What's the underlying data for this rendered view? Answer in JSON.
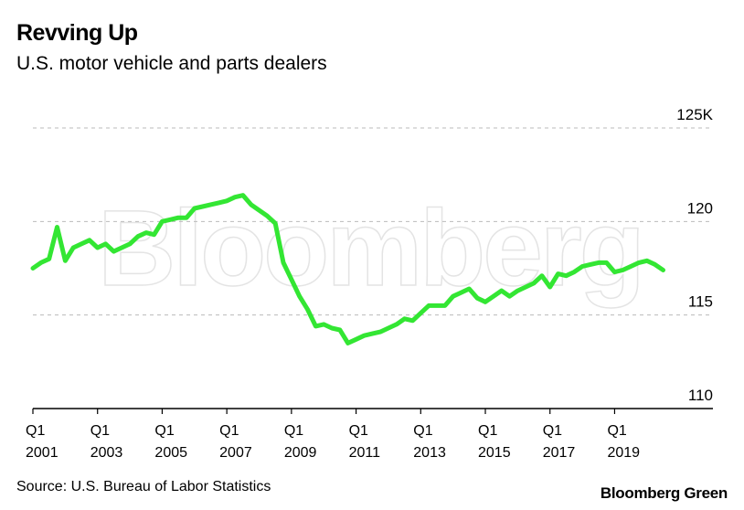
{
  "header": {
    "title": "Revving Up",
    "subtitle": "U.S. motor vehicle and parts dealers"
  },
  "footer": {
    "source": "Source: U.S. Bureau of Labor Statistics",
    "brand": "Bloomberg Green"
  },
  "watermark": "Bloomberg",
  "colors": {
    "line": "#33e633",
    "grid": "#bbbbbb",
    "axis": "#000000"
  },
  "chart_data": {
    "type": "line",
    "title": "Revving Up",
    "subtitle": "U.S. motor vehicle and parts dealers",
    "xlabel": "",
    "ylabel": "",
    "ylim": [
      110,
      125
    ],
    "grid": true,
    "y_ticks": [
      {
        "value": 125,
        "label": "125K"
      },
      {
        "value": 120,
        "label": "120"
      },
      {
        "value": 115,
        "label": "115"
      },
      {
        "value": 110,
        "label": "110"
      }
    ],
    "x_ticks": [
      {
        "x": 2001.0,
        "line1": "Q1",
        "line2": "2001"
      },
      {
        "x": 2003.0,
        "line1": "Q1",
        "line2": "2003"
      },
      {
        "x": 2005.0,
        "line1": "Q1",
        "line2": "2005"
      },
      {
        "x": 2007.0,
        "line1": "Q1",
        "line2": "2007"
      },
      {
        "x": 2009.0,
        "line1": "Q1",
        "line2": "2009"
      },
      {
        "x": 2011.0,
        "line1": "Q1",
        "line2": "2011"
      },
      {
        "x": 2013.0,
        "line1": "Q1",
        "line2": "2013"
      },
      {
        "x": 2015.0,
        "line1": "Q1",
        "line2": "2015"
      },
      {
        "x": 2017.0,
        "line1": "Q1",
        "line2": "2017"
      },
      {
        "x": 2019.0,
        "line1": "Q1",
        "line2": "2019"
      }
    ],
    "x_range": [
      2001.0,
      2021.25
    ],
    "series": [
      {
        "x": [
          2001.0,
          2001.25,
          2001.5,
          2001.75,
          2002.0,
          2002.25,
          2002.5,
          2002.75,
          2003.0,
          2003.25,
          2003.5,
          2003.75,
          2004.0,
          2004.25,
          2004.5,
          2004.75,
          2005.0,
          2005.25,
          2005.5,
          2005.75,
          2006.0,
          2006.25,
          2006.5,
          2006.75,
          2007.0,
          2007.25,
          2007.5,
          2007.75,
          2008.0,
          2008.25,
          2008.5,
          2008.75,
          2009.0,
          2009.25,
          2009.5,
          2009.75,
          2010.0,
          2010.25,
          2010.5,
          2010.75,
          2011.0,
          2011.25,
          2011.5,
          2011.75,
          2012.0,
          2012.25,
          2012.5,
          2012.75,
          2013.0,
          2013.25,
          2013.5,
          2013.75,
          2014.0,
          2014.25,
          2014.5,
          2014.75,
          2015.0,
          2015.25,
          2015.5,
          2015.75,
          2016.0,
          2016.25,
          2016.5,
          2016.75,
          2017.0,
          2017.25,
          2017.5,
          2017.75,
          2018.0,
          2018.25,
          2018.5,
          2018.75,
          2019.0,
          2019.25,
          2019.5,
          2019.75,
          2020.0,
          2020.25,
          2020.5
        ],
        "values": [
          117.5,
          117.8,
          118.0,
          119.7,
          117.9,
          118.6,
          118.8,
          119.0,
          118.6,
          118.8,
          118.4,
          118.6,
          118.8,
          119.2,
          119.4,
          119.3,
          120.0,
          120.1,
          120.2,
          120.2,
          120.7,
          120.8,
          120.9,
          121.0,
          121.1,
          121.3,
          121.4,
          120.9,
          120.6,
          120.3,
          119.9,
          117.8,
          116.9,
          116.0,
          115.3,
          114.4,
          114.5,
          114.3,
          114.2,
          113.5,
          113.7,
          113.9,
          114.0,
          114.1,
          114.3,
          114.5,
          114.8,
          114.7,
          115.1,
          115.5,
          115.5,
          115.5,
          116.0,
          116.2,
          116.4,
          115.9,
          115.7,
          116.0,
          116.3,
          116.0,
          116.3,
          116.5,
          116.7,
          117.1,
          116.5,
          117.2,
          117.1,
          117.3,
          117.6,
          117.7,
          117.8,
          117.8,
          117.3,
          117.4,
          117.6,
          117.8,
          117.9,
          117.7,
          117.4
        ]
      }
    ]
  }
}
